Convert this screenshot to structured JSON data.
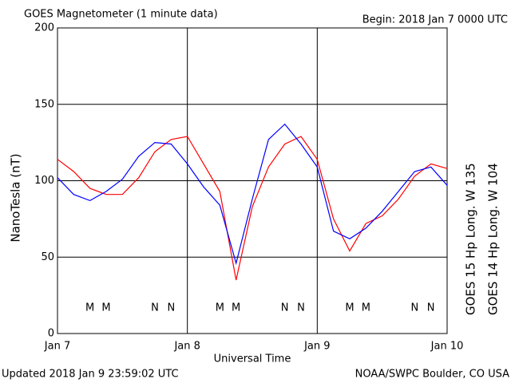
{
  "chart_data": {
    "type": "line",
    "title": "GOES Magnetometer (1 minute data)",
    "subtitle": "Begin:  2018 Jan 7 0000 UTC",
    "ylabel": "NanoTesla (nT)",
    "xlabel": "Universal Time",
    "footer_left": "Updated 2018 Jan  9 23:59:02 UTC",
    "footer_right": "NOAA/SWPC Boulder, CO USA",
    "x": [
      "2018-01-07T00:00",
      "2018-01-07T03:00",
      "2018-01-07T06:00",
      "2018-01-07T09:00",
      "2018-01-07T12:00",
      "2018-01-07T15:00",
      "2018-01-07T18:00",
      "2018-01-07T21:00",
      "2018-01-08T00:00",
      "2018-01-08T03:00",
      "2018-01-08T06:00",
      "2018-01-08T09:00",
      "2018-01-08T12:00",
      "2018-01-08T15:00",
      "2018-01-08T18:00",
      "2018-01-08T21:00",
      "2018-01-09T00:00",
      "2018-01-09T03:00",
      "2018-01-09T06:00",
      "2018-01-09T09:00",
      "2018-01-09T12:00",
      "2018-01-09T15:00",
      "2018-01-09T18:00",
      "2018-01-09T21:00",
      "2018-01-10T00:00"
    ],
    "series": [
      {
        "name": "GOES 15 Hp  Long. W 135",
        "color": "#ff0000",
        "values": [
          114,
          106,
          95,
          91,
          91,
          102,
          119,
          127,
          129,
          111,
          93,
          35,
          83,
          109,
          124,
          129,
          114,
          75,
          54,
          72,
          77,
          88,
          103,
          111,
          108
        ]
      },
      {
        "name": "GOES 14 Hp  Long. W 104",
        "color": "#0000ff",
        "values": [
          102,
          91,
          87,
          93,
          101,
          116,
          125,
          124,
          111,
          96,
          84,
          46,
          88,
          127,
          137,
          124,
          109,
          67,
          62,
          69,
          80,
          93,
          106,
          109,
          97
        ]
      }
    ],
    "xlim": [
      "2018-01-07T00:00",
      "2018-01-10T00:00"
    ],
    "xticks": [
      {
        "value": "2018-01-07T00:00",
        "label": "Jan 7"
      },
      {
        "value": "2018-01-08T00:00",
        "label": "Jan 8"
      },
      {
        "value": "2018-01-09T00:00",
        "label": "Jan 9"
      },
      {
        "value": "2018-01-10T00:00",
        "label": "Jan 10"
      }
    ],
    "ylim": [
      0,
      200
    ],
    "yticks": [
      0,
      50,
      100,
      150,
      200
    ],
    "grid": true,
    "markers": [
      {
        "text": "M",
        "x": "2018-01-07T06:00",
        "color": "#0000ff"
      },
      {
        "text": "M",
        "x": "2018-01-07T09:00",
        "color": "#ff0000"
      },
      {
        "text": "N",
        "x": "2018-01-07T18:00",
        "color": "#0000ff"
      },
      {
        "text": "N",
        "x": "2018-01-07T21:00",
        "color": "#ff0000"
      },
      {
        "text": "M",
        "x": "2018-01-08T06:00",
        "color": "#0000ff"
      },
      {
        "text": "M",
        "x": "2018-01-08T09:00",
        "color": "#ff0000"
      },
      {
        "text": "N",
        "x": "2018-01-08T18:00",
        "color": "#0000ff"
      },
      {
        "text": "N",
        "x": "2018-01-08T21:00",
        "color": "#ff0000"
      },
      {
        "text": "M",
        "x": "2018-01-09T06:00",
        "color": "#0000ff"
      },
      {
        "text": "M",
        "x": "2018-01-09T09:00",
        "color": "#ff0000"
      },
      {
        "text": "N",
        "x": "2018-01-09T18:00",
        "color": "#0000ff"
      },
      {
        "text": "N",
        "x": "2018-01-09T21:00",
        "color": "#ff0000"
      }
    ]
  }
}
